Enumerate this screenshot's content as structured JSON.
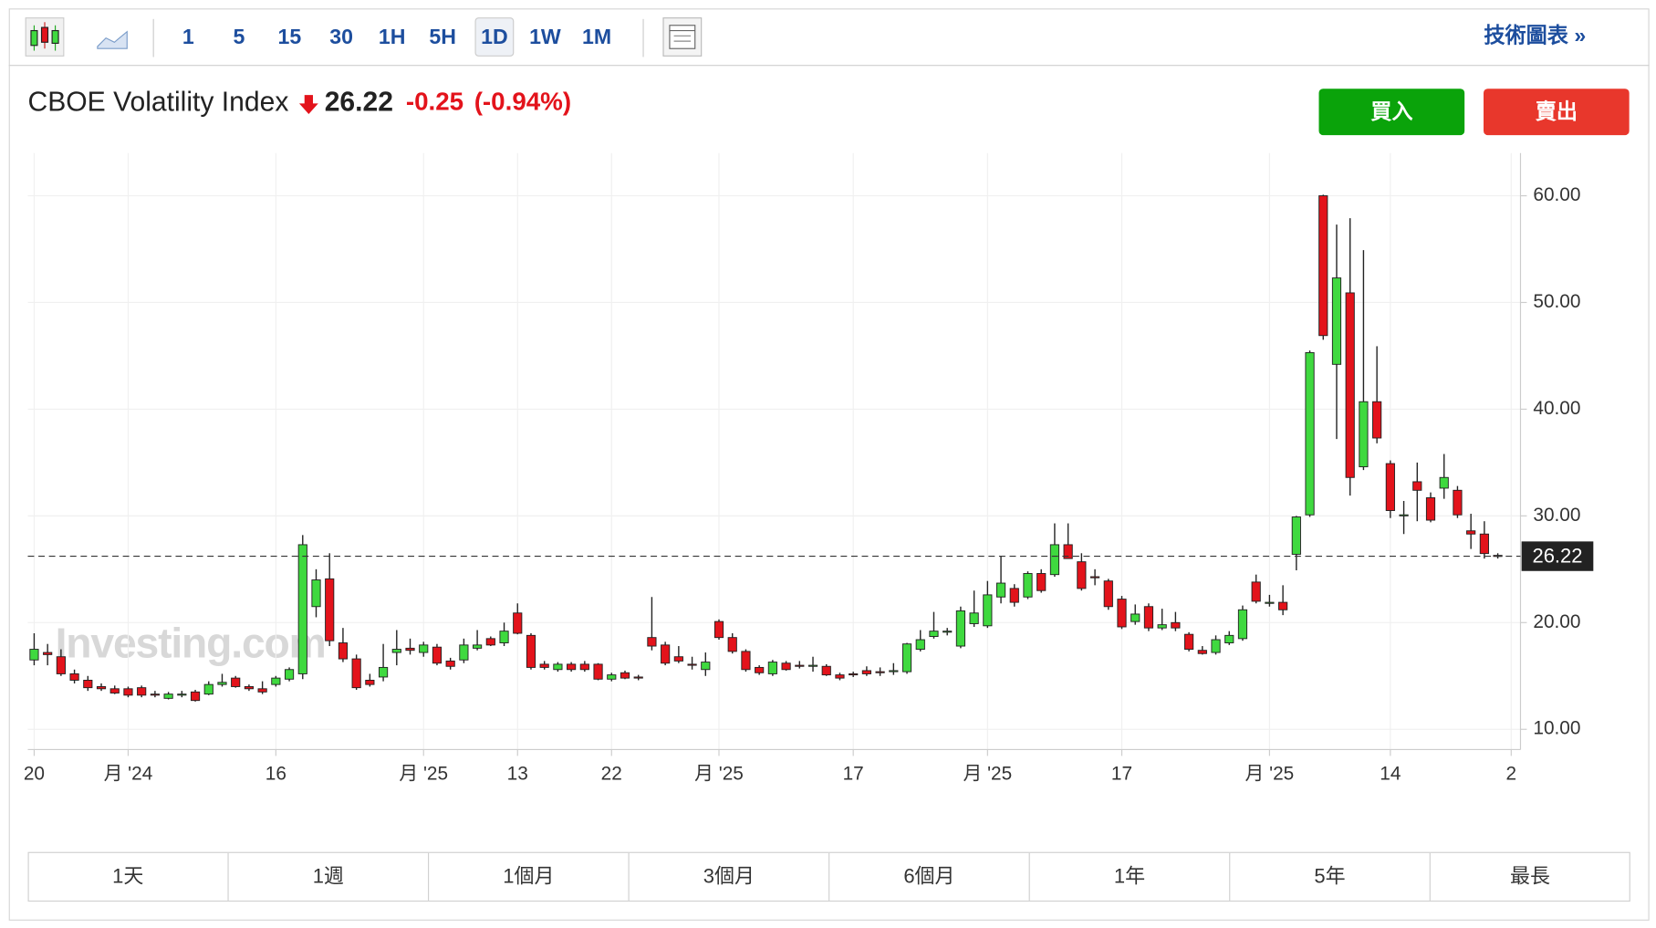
{
  "toolbar": {
    "intervals": [
      "1",
      "5",
      "15",
      "30",
      "1H",
      "5H",
      "1D",
      "1W",
      "1M"
    ],
    "link": "技術圖表 »"
  },
  "header": {
    "name": "CBOE Volatility Index",
    "price": "26.22",
    "change": "-0.25",
    "change_pct": "(-0.94%)",
    "buy": "買入",
    "sell": "賣出"
  },
  "range_buttons": [
    "1天",
    "1週",
    "1個月",
    "3個月",
    "6個月",
    "1年",
    "5年",
    "最長"
  ],
  "chart_data": {
    "type": "candlestick",
    "watermark": "Investing.com",
    "up_color": "#3fd93f",
    "down_color": "#e3131b",
    "grid": true,
    "ylim": [
      8.1,
      64
    ],
    "yticks": [
      {
        "value": 10,
        "label": "10.00"
      },
      {
        "value": 20,
        "label": "20.00"
      },
      {
        "value": 30,
        "label": "30.00"
      },
      {
        "value": 40,
        "label": "40.00"
      },
      {
        "value": 50,
        "label": "50.00"
      },
      {
        "value": 60,
        "label": "60.00"
      }
    ],
    "categories": [
      "20",
      null,
      null,
      null,
      null,
      null,
      null,
      "月 '24",
      null,
      null,
      null,
      null,
      null,
      null,
      null,
      null,
      null,
      null,
      "16",
      null,
      null,
      null,
      null,
      null,
      null,
      null,
      null,
      null,
      null,
      "月 '25",
      null,
      null,
      null,
      null,
      null,
      null,
      "13",
      null,
      null,
      null,
      null,
      null,
      null,
      "22",
      null,
      null,
      null,
      null,
      null,
      null,
      null,
      "月 '25",
      null,
      null,
      null,
      null,
      null,
      null,
      null,
      null,
      null,
      "17",
      null,
      null,
      null,
      null,
      null,
      null,
      null,
      null,
      null,
      "月 '25",
      null,
      null,
      null,
      null,
      null,
      null,
      null,
      null,
      null,
      "17",
      null,
      null,
      null,
      null,
      null,
      null,
      null,
      null,
      null,
      null,
      "月 '25",
      null,
      null,
      null,
      null,
      null,
      null,
      null,
      null,
      "14",
      null,
      null,
      null,
      null,
      null,
      null,
      null,
      null,
      "2"
    ],
    "open": [
      16.5,
      17.2,
      16.8,
      15.2,
      14.6,
      14,
      13.8,
      13.8,
      13.9,
      13.3,
      12.9,
      13.2,
      13.5,
      13.3,
      14.2,
      14.8,
      14,
      13.8,
      14.2,
      14.7,
      15.2,
      21.5,
      24.1,
      18.1,
      16.6,
      14.6,
      14.9,
      17.2,
      17.6,
      17.2,
      17.7,
      16.4,
      16.5,
      17.6,
      18.5,
      18.1,
      20.9,
      18.8,
      16.1,
      15.6,
      16.1,
      16.1,
      16.1,
      14.7,
      15.3,
      14.9,
      18.6,
      17.9,
      16.8,
      16.1,
      15.6,
      20.1,
      18.6,
      17.3,
      15.8,
      15.2,
      16.2,
      16,
      16,
      15.9,
      15.1,
      15.2,
      15.5,
      15.4,
      15.4,
      15.4,
      17.5,
      18.7,
      19.1,
      17.8,
      19.9,
      19.7,
      22.4,
      23.2,
      22.4,
      24.6,
      24.5,
      27.3,
      25.7,
      24.3,
      23.9,
      22.2,
      20.1,
      21.5,
      19.5,
      20,
      18.9,
      17.4,
      17.2,
      18.1,
      18.5,
      23.8,
      21.8,
      21.9,
      26.4,
      30.1,
      60,
      44.2,
      50.9,
      34.6,
      40.7,
      34.9,
      30,
      33.2,
      31.7,
      32.6,
      32.4,
      28.6,
      28.3,
      26.3,
      null
    ],
    "high": [
      19,
      18,
      17.5,
      15.6,
      15,
      14.3,
      14.1,
      14,
      14.1,
      13.6,
      13.5,
      13.6,
      13.7,
      14.5,
      15.2,
      15,
      14.2,
      14.5,
      15,
      15.8,
      28.2,
      25,
      26.5,
      19.5,
      17,
      15.2,
      18,
      19.3,
      18.5,
      18.2,
      18,
      16.7,
      18.5,
      19.3,
      18.7,
      20,
      21.8,
      19,
      16.4,
      16.3,
      16.3,
      16.4,
      16.2,
      15.3,
      15.5,
      15.1,
      22.4,
      18.2,
      17.8,
      16.8,
      17.2,
      20.3,
      19,
      17.5,
      16,
      16.5,
      16.4,
      16.4,
      16.8,
      16.1,
      15.3,
      15.4,
      15.9,
      15.8,
      16.2,
      18.1,
      19.3,
      21,
      19.5,
      21.5,
      23,
      23.9,
      26.2,
      23.6,
      24.8,
      25,
      29.3,
      29.3,
      26.5,
      25,
      24.1,
      22.5,
      21.7,
      21.8,
      21.3,
      21,
      19.1,
      17.8,
      18.8,
      19.2,
      21.6,
      24.5,
      22.6,
      23.5,
      30,
      45.5,
      60.1,
      57.3,
      57.9,
      54.9,
      45.9,
      35.2,
      31.4,
      35,
      32.2,
      35.8,
      32.8,
      30.2,
      29.5,
      26.5,
      null
    ],
    "low": [
      16,
      16,
      15,
      14.3,
      13.6,
      13.6,
      13.3,
      13,
      13,
      13,
      12.8,
      13,
      12.6,
      13.2,
      14,
      13.9,
      13.6,
      13.3,
      14,
      14.5,
      14.7,
      20.5,
      17.8,
      16.3,
      13.7,
      14,
      14.5,
      16,
      17,
      16.8,
      16,
      15.6,
      16.2,
      17.4,
      17.8,
      17.8,
      18.9,
      15.6,
      15.6,
      15.4,
      15.4,
      15.4,
      14.6,
      14.5,
      14.7,
      14.6,
      17.4,
      16,
      16.2,
      15.6,
      15,
      18.4,
      17.1,
      15.4,
      15.1,
      15,
      15.5,
      15.7,
      15.4,
      15,
      14.6,
      14.9,
      15,
      15,
      15.1,
      15.2,
      17.3,
      18.5,
      18.8,
      17.6,
      19.6,
      19.5,
      21.8,
      21.5,
      22.2,
      22.8,
      24.3,
      26,
      23,
      23.5,
      21.2,
      19.4,
      19.8,
      19.2,
      19.3,
      19.2,
      17.3,
      17,
      17,
      17.9,
      18.3,
      21.8,
      21.5,
      20.7,
      24.9,
      29.9,
      46.5,
      37.2,
      31.9,
      34.3,
      36.8,
      29.8,
      28.3,
      29.5,
      29.4,
      31.6,
      29.8,
      26.9,
      26,
      26,
      null
    ],
    "close": [
      17.5,
      17,
      15.2,
      14.6,
      13.9,
      13.8,
      13.4,
      13.2,
      13.2,
      13.2,
      13.3,
      13.3,
      12.7,
      14.2,
      14.4,
      14,
      13.8,
      13.5,
      14.8,
      15.6,
      27.3,
      24,
      18.3,
      16.6,
      13.9,
      14.2,
      15.8,
      17.5,
      17.4,
      17.9,
      16.2,
      15.9,
      17.9,
      17.9,
      17.9,
      19.2,
      19,
      15.8,
      15.8,
      16.1,
      15.6,
      15.6,
      14.7,
      15.1,
      14.8,
      14.8,
      17.8,
      16.2,
      16.4,
      16,
      16.3,
      18.6,
      17.3,
      15.6,
      15.3,
      16.3,
      15.6,
      15.9,
      16,
      15.1,
      14.8,
      15.1,
      15.2,
      15.3,
      15.5,
      18,
      18.4,
      19.2,
      19.2,
      21.1,
      20.9,
      22.6,
      23.7,
      21.9,
      24.6,
      23,
      27.3,
      26,
      23.2,
      24.2,
      21.5,
      19.6,
      20.8,
      19.5,
      19.8,
      19.5,
      17.5,
      17.1,
      18.4,
      18.8,
      21.2,
      22,
      21.9,
      21.2,
      29.9,
      45.3,
      46.9,
      52.3,
      33.6,
      40.7,
      37.3,
      30.5,
      30.1,
      32.4,
      29.6,
      33.6,
      30.1,
      28.3,
      26.47,
      26.22,
      null
    ]
  }
}
